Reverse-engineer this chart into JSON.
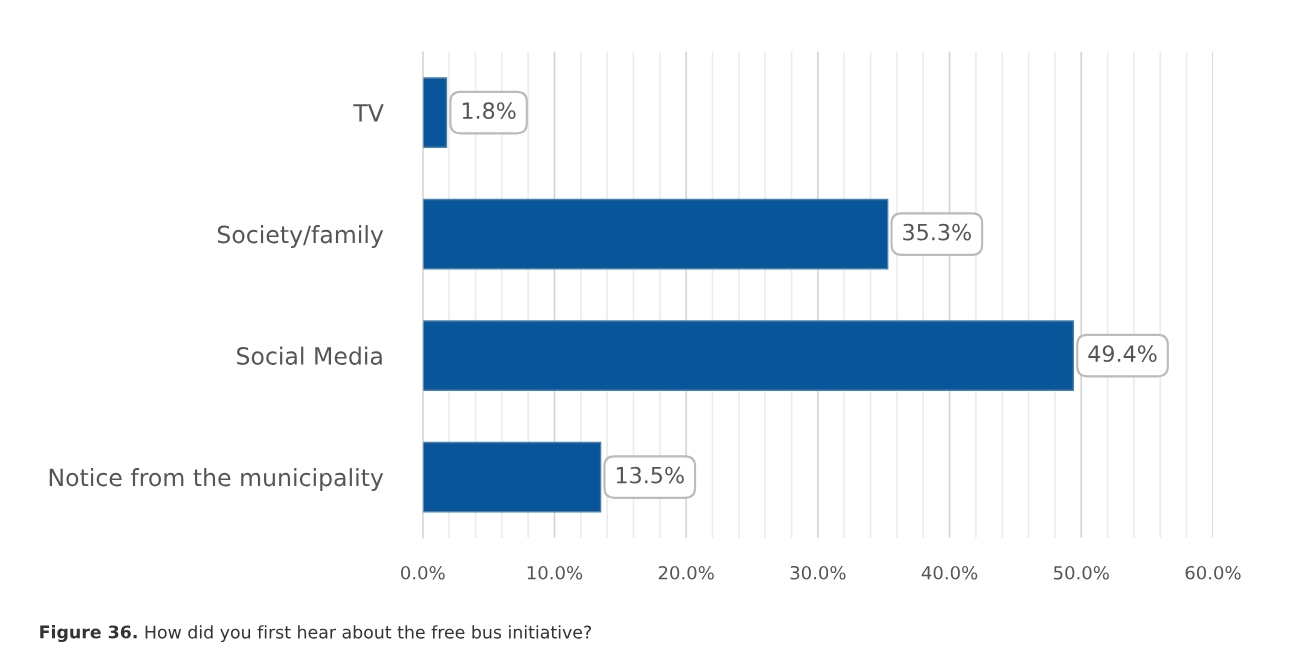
{
  "chart_data": {
    "type": "bar",
    "orientation": "horizontal",
    "categories": [
      "TV",
      "Society/family",
      "Social Media",
      "Notice from the municipality"
    ],
    "values": [
      1.8,
      35.3,
      49.4,
      13.5
    ],
    "value_labels": [
      "1.8%",
      "35.3%",
      "49.4%",
      "13.5%"
    ],
    "color": "#08559a",
    "xlim": [
      0,
      60
    ],
    "xticks": [
      {
        "value": 0,
        "label": "0.0%"
      },
      {
        "value": 2,
        "label": null
      },
      {
        "value": 4,
        "label": null
      },
      {
        "value": 6,
        "label": null
      },
      {
        "value": 8,
        "label": null
      },
      {
        "value": 10,
        "label": "10.0%"
      },
      {
        "value": 12,
        "label": null
      },
      {
        "value": 14,
        "label": null
      },
      {
        "value": 16,
        "label": null
      },
      {
        "value": 18,
        "label": null
      },
      {
        "value": 20,
        "label": "20.0%"
      },
      {
        "value": 22,
        "label": null
      },
      {
        "value": 24,
        "label": null
      },
      {
        "value": 26,
        "label": null
      },
      {
        "value": 28,
        "label": null
      },
      {
        "value": 30,
        "label": "30.0%"
      },
      {
        "value": 32,
        "label": null
      },
      {
        "value": 34,
        "label": null
      },
      {
        "value": 36,
        "label": null
      },
      {
        "value": 38,
        "label": null
      },
      {
        "value": 40,
        "label": "40.0%"
      },
      {
        "value": 42,
        "label": null
      },
      {
        "value": 44,
        "label": null
      },
      {
        "value": 46,
        "label": null
      },
      {
        "value": 48,
        "label": null
      },
      {
        "value": 50,
        "label": "50.0%"
      },
      {
        "value": 52,
        "label": null
      },
      {
        "value": 54,
        "label": null
      },
      {
        "value": 56,
        "label": null
      },
      {
        "value": 58,
        "label": null
      },
      {
        "value": 60,
        "label": "60.0%"
      }
    ],
    "grid": "x",
    "legend": false,
    "annotations": [
      "Figure 36.",
      "How did you first hear about the free bus initiative?"
    ]
  }
}
